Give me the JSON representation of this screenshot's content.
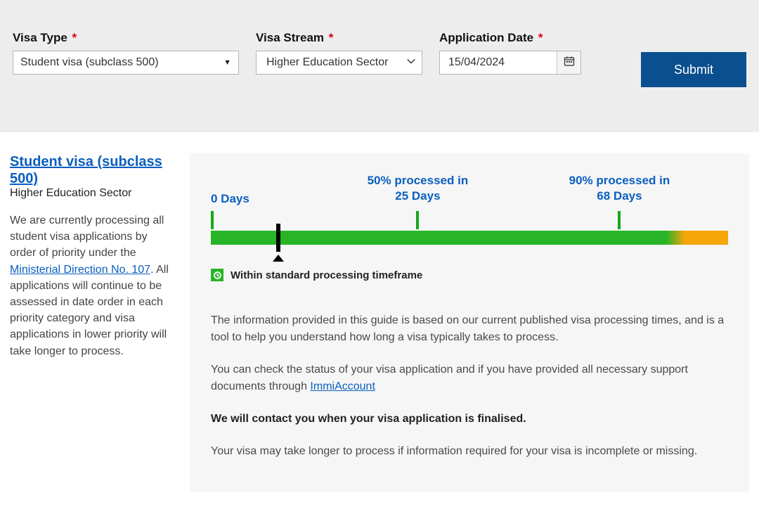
{
  "form": {
    "visa_type": {
      "label": "Visa Type",
      "required": "*",
      "value": "Student visa (subclass 500)"
    },
    "visa_stream": {
      "label": "Visa Stream",
      "required": "*",
      "value": "Higher Education Sector"
    },
    "application_date": {
      "label": "Application Date",
      "required": "*",
      "value": "15/04/2024"
    },
    "submit_label": "Submit"
  },
  "sidebar": {
    "title": "Student visa (subclass 500)",
    "subtitle": "Higher Education Sector",
    "para_before": "We are currently processing all student visa applications by order of priority under the ",
    "link_text": "Ministerial Direction No. 107",
    "para_after": ". All applications will continue to be assessed in date order in each priority category and visa applications in lower priority will take longer to process."
  },
  "timeline": {
    "start_label": "0 Days",
    "p50_caption": "50% processed in",
    "p50_label": "25 Days",
    "p90_caption": "90% processed in",
    "p90_label": "68 Days",
    "green_end_pct": 88,
    "orange_end_pct": 100,
    "p50_pos_pct": 40,
    "p90_pos_pct": 79,
    "marker_pos_pct": 13,
    "bar_green_color": "#27b427",
    "bar_orange_color": "#f6a50b",
    "tick_color": "#18a718",
    "label_color": "#0a5fbf"
  },
  "status": {
    "text": "Within standard processing timeframe",
    "badge_color": "#27b427"
  },
  "info": {
    "p1": "The information provided in this guide is based on our current published visa processing times, and is a tool to help you understand how long a visa typically takes to process.",
    "p2_before": "You can check the status of your visa application and if you have provided all necessary support documents through ",
    "p2_link": "ImmiAccount",
    "p3": "We will contact you when your visa application is finalised.",
    "p4": "Your visa may take longer to process if information required for your visa is incomplete or missing."
  },
  "colors": {
    "panel_bg": "#ededed",
    "primary_blue": "#0a4f8e",
    "link_blue": "#0a5fbf",
    "result_bg": "#f6f6f6"
  }
}
